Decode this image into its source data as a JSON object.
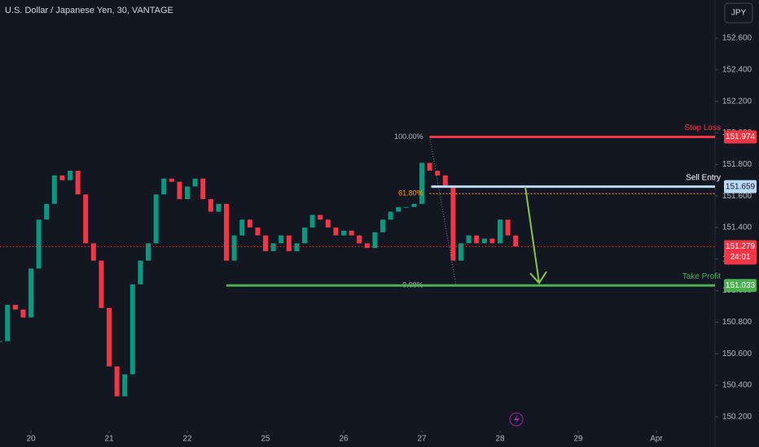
{
  "toolbar": {
    "currency": "JPY"
  },
  "chart_data": {
    "type": "candlestick",
    "title": "U.S. Dollar / Japanese Yen, 30, VANTAGE",
    "x": [
      -0.4,
      -0.3,
      -0.2,
      -0.1,
      0,
      0.1,
      0.2,
      0.3,
      0.4,
      0.5,
      0.6,
      0.7,
      0.8,
      0.9,
      1,
      1.1,
      1.2,
      1.3,
      1.4,
      1.5,
      1.6,
      1.7,
      1.8,
      1.9,
      2,
      2.1,
      2.2,
      2.3,
      2.4,
      2.5,
      2.6,
      2.7,
      2.8,
      2.9,
      3,
      3.1,
      3.2,
      3.3,
      3.4,
      3.5,
      3.6,
      3.7,
      3.8,
      3.9,
      4,
      4.1,
      4.2,
      4.3,
      4.4,
      4.5,
      4.6,
      4.7,
      4.8,
      4.9,
      5,
      5.1,
      5.2,
      5.3,
      5.4,
      5.5,
      5.6,
      5.7,
      5.8,
      5.9,
      6,
      6.1,
      6.2
    ],
    "series": [
      {
        "name": "USDJPY",
        "up_color": "#089981",
        "down_color": "#f23645",
        "values": [
          150.68,
          150.91,
          150.88,
          150.83,
          151.14,
          151.45,
          151.55,
          151.73,
          151.7,
          151.76,
          151.61,
          151.3,
          151.19,
          150.89,
          150.52,
          150.33,
          150.47,
          151.04,
          151.19,
          151.3,
          151.61,
          151.71,
          151.69,
          151.58,
          151.66,
          151.71,
          151.58,
          151.5,
          151.55,
          151.19,
          151.35,
          151.45,
          151.4,
          151.35,
          151.25,
          151.3,
          151.35,
          151.25,
          151.3,
          151.4,
          151.48,
          151.45,
          151.4,
          151.35,
          151.38,
          151.35,
          151.3,
          151.27,
          151.37,
          151.45,
          151.5,
          151.53,
          151.53,
          151.55,
          151.81,
          151.76,
          151.73,
          151.66,
          151.19,
          151.3,
          151.35,
          151.3,
          151.33,
          151.3,
          151.45,
          151.35,
          151.28
        ]
      }
    ],
    "xlim": [
      -0.396,
      8.75
    ],
    "xticks": [
      {
        "value": 0,
        "label": "20"
      },
      {
        "value": 1,
        "label": "21"
      },
      {
        "value": 2,
        "label": "22"
      },
      {
        "value": 3,
        "label": "25"
      },
      {
        "value": 4,
        "label": "26"
      },
      {
        "value": 5,
        "label": "27"
      },
      {
        "value": 6,
        "label": "28"
      },
      {
        "value": 7,
        "label": "29"
      },
      {
        "value": 8,
        "label": "Apr"
      }
    ],
    "ylim": [
      150.112,
      152.842
    ],
    "yticks": [
      {
        "value": 150.2,
        "label": "150.200"
      },
      {
        "value": 150.4,
        "label": "150.400"
      },
      {
        "value": 150.6,
        "label": "150.600"
      },
      {
        "value": 150.8,
        "label": "150.800"
      },
      {
        "value": 151,
        "label": "151.000"
      },
      {
        "value": 151.2,
        "label": "151.200"
      },
      {
        "value": 151.4,
        "label": "151.400"
      },
      {
        "value": 151.6,
        "label": "151.600"
      },
      {
        "value": 151.8,
        "label": "151.800"
      },
      {
        "value": 152,
        "label": "152.000"
      },
      {
        "value": 152.2,
        "label": "152.200"
      },
      {
        "value": 152.4,
        "label": "152.400"
      },
      {
        "value": 152.6,
        "label": "152.600"
      }
    ],
    "levels": [
      {
        "label": "Stop Loss",
        "value": 151.974,
        "color": "#f23645",
        "x_start": 5.1
      },
      {
        "label": "Sell Entry",
        "value": 151.659,
        "color": "#bbd9fb",
        "x_start": 5.12
      },
      {
        "label": "Take Profit",
        "value": 151.033,
        "color": "#4caf50",
        "x_start": 2.5
      }
    ],
    "fib_levels": [
      {
        "label": "100.00%",
        "ratio": 100,
        "price": 151.974
      },
      {
        "label": "61.80%",
        "ratio": 61.8,
        "price": 151.615
      },
      {
        "label": "0.00%",
        "ratio": 0,
        "price": 151.033
      }
    ],
    "last_price": 151.279,
    "countdown": "24:01",
    "last_color": "#f23645"
  }
}
